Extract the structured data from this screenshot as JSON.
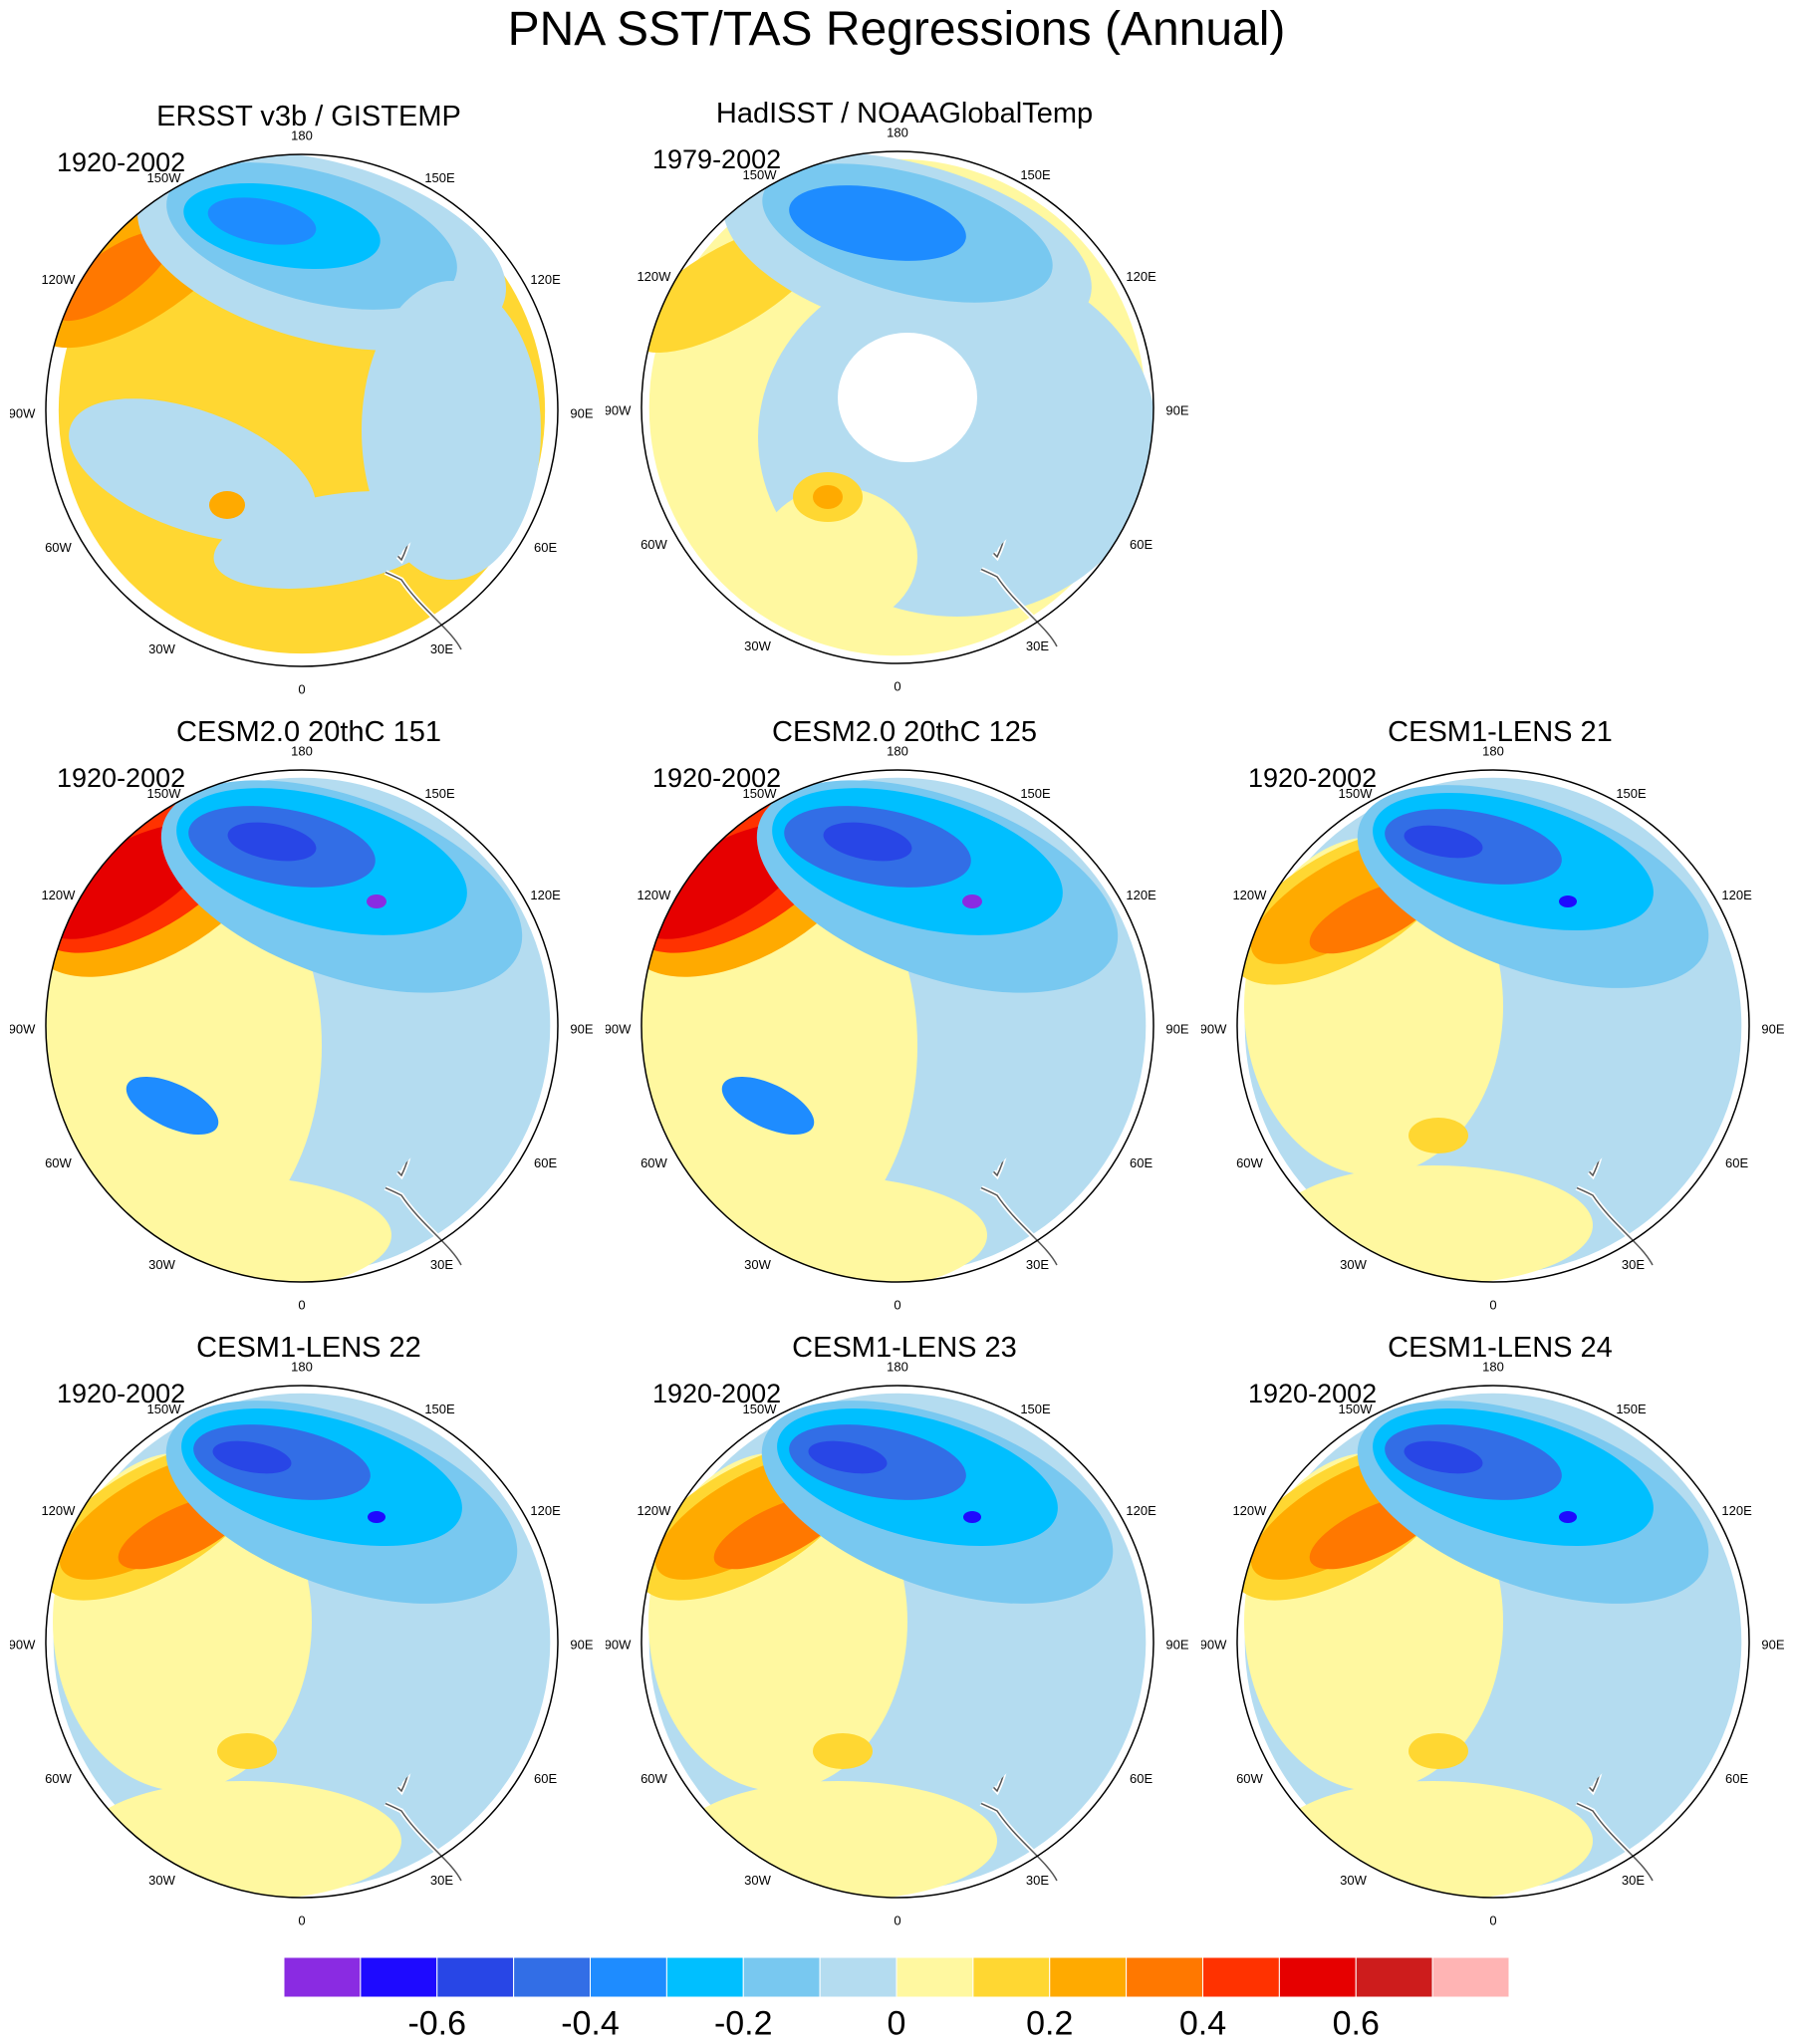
{
  "title": "PNA SST/TAS Regressions (Annual)",
  "longitude_labels": [
    "180",
    "150E",
    "120E",
    "90E",
    "60E",
    "30E",
    "0",
    "30W",
    "60W",
    "90W",
    "120W",
    "150W"
  ],
  "panels": [
    {
      "title": "ERSST v3b / GISTEMP",
      "period": "1920-2002",
      "pattern": "obs1"
    },
    {
      "title": "HadISST / NOAAGlobalTemp",
      "period": "1979-2002",
      "pattern": "obs2"
    },
    {
      "title": "CESM2.0 20thC 151",
      "period": "1920-2002",
      "pattern": "strong"
    },
    {
      "title": "CESM2.0 20thC 125",
      "period": "1920-2002",
      "pattern": "strong"
    },
    {
      "title": "CESM1-LENS 21",
      "period": "1920-2002",
      "pattern": "lens"
    },
    {
      "title": "CESM1-LENS 22",
      "period": "1920-2002",
      "pattern": "lens"
    },
    {
      "title": "CESM1-LENS 23",
      "period": "1920-2002",
      "pattern": "lens"
    },
    {
      "title": "CESM1-LENS 24",
      "period": "1920-2002",
      "pattern": "lens"
    }
  ],
  "colorbar": {
    "colors": [
      "#8a2be2",
      "#1e0aff",
      "#2846e6",
      "#326ee6",
      "#1e8cff",
      "#00bfff",
      "#78c8f0",
      "#b4dcf0",
      "#fff8a0",
      "#ffd732",
      "#ffaa00",
      "#ff7800",
      "#ff3200",
      "#e60000",
      "#cd1c1c",
      "#ffb4b4"
    ],
    "labels": [
      "-0.6",
      "-0.4",
      "-0.2",
      "0",
      "0.2",
      "0.4",
      "0.6"
    ]
  }
}
